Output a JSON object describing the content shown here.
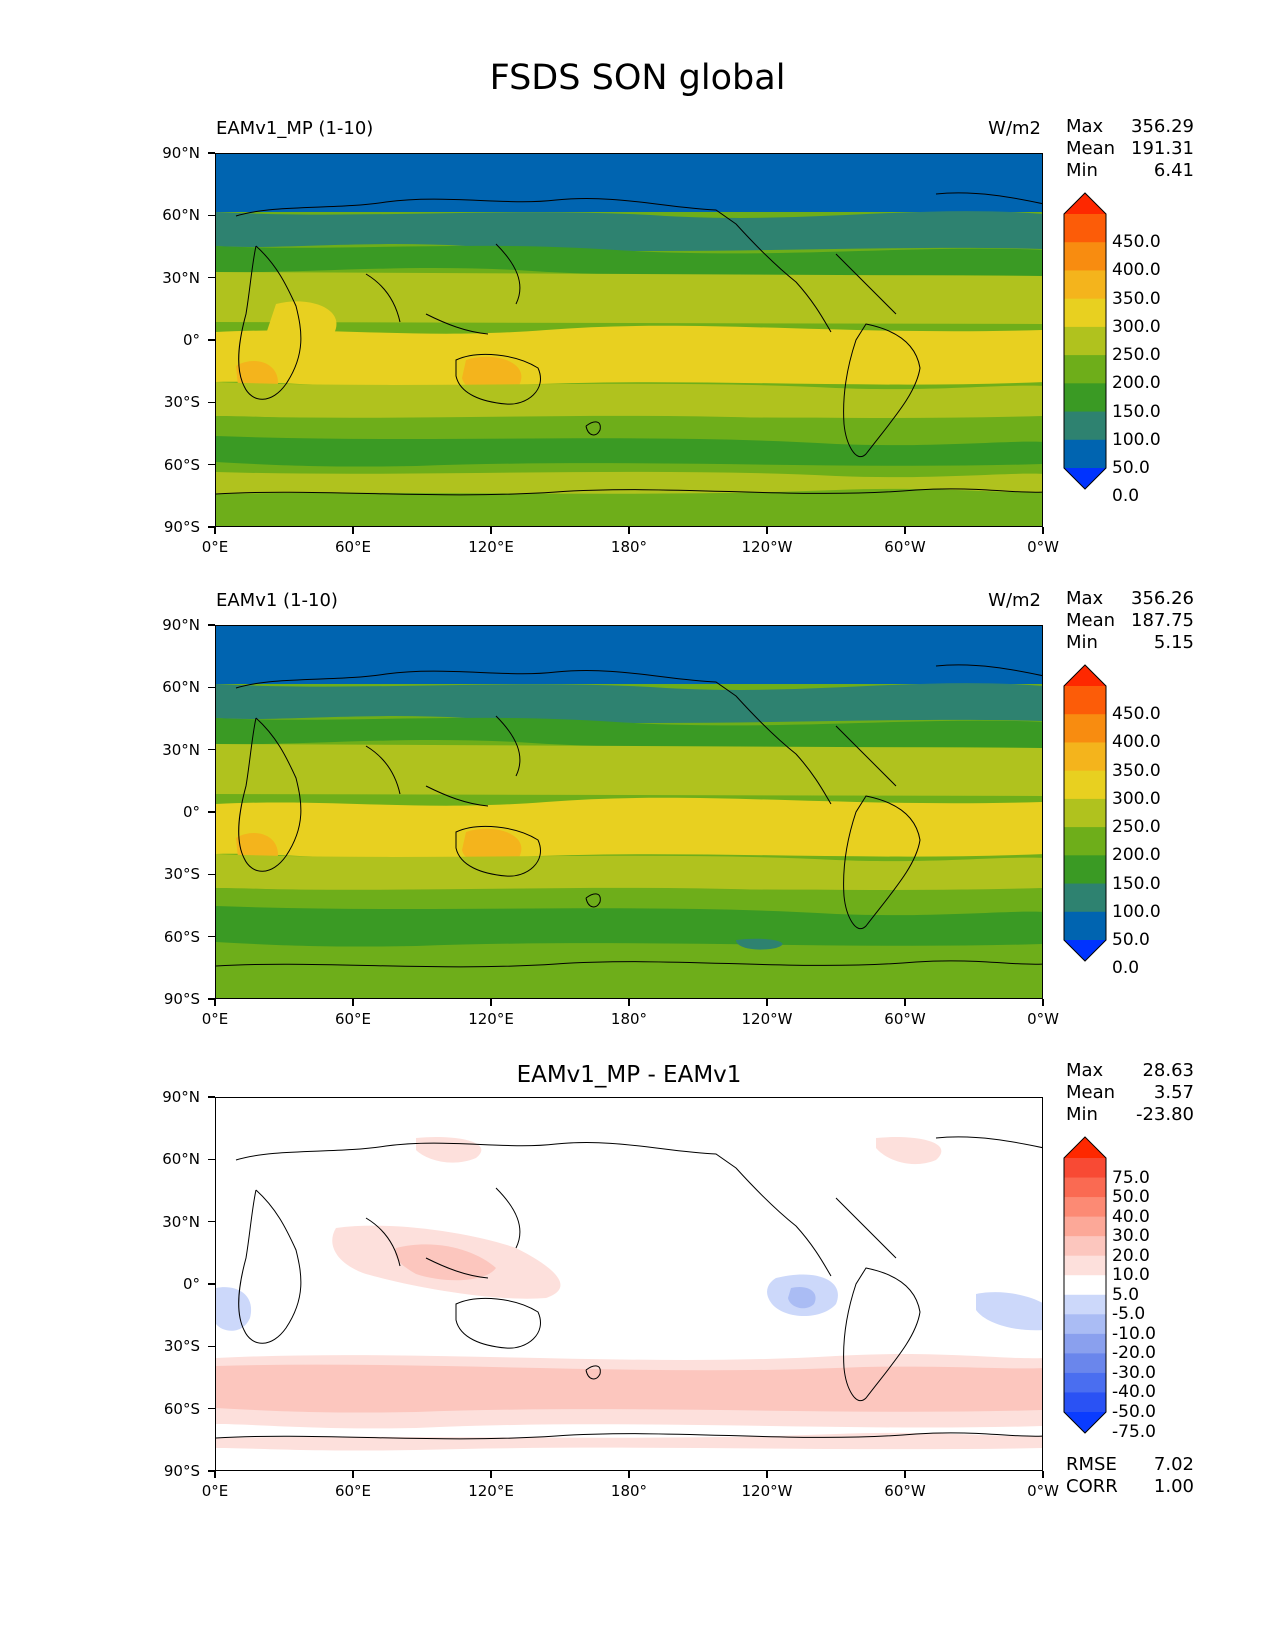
{
  "figure": {
    "title": "FSDS SON global"
  },
  "lat_ticks": [
    "90°N",
    "60°N",
    "30°N",
    "0°",
    "30°S",
    "60°S",
    "90°S"
  ],
  "lon_ticks": [
    "0°E",
    "60°E",
    "120°E",
    "180°",
    "120°W",
    "60°W",
    "0°W"
  ],
  "panels": [
    {
      "title_left": "EAMv1_MP (1-10)",
      "title_right": "W/m2",
      "stats": [
        {
          "label": "Max",
          "value": "356.29"
        },
        {
          "label": "Mean",
          "value": "191.31"
        },
        {
          "label": "Min",
          "value": "6.41"
        }
      ],
      "colorbar": {
        "labels": [
          "450.0",
          "400.0",
          "350.0",
          "300.0",
          "250.0",
          "200.0",
          "150.0",
          "100.0",
          "50.0",
          "0.0"
        ],
        "colors": [
          "#0033ff",
          "#0064b0",
          "#2e8270",
          "#3a9a24",
          "#6eae1a",
          "#b0c21e",
          "#e8d020",
          "#f4b41c",
          "#f88c10",
          "#fc5c08",
          "#fe2800"
        ]
      }
    },
    {
      "title_left": "EAMv1 (1-10)",
      "title_right": "W/m2",
      "stats": [
        {
          "label": "Max",
          "value": "356.26"
        },
        {
          "label": "Mean",
          "value": "187.75"
        },
        {
          "label": "Min",
          "value": "5.15"
        }
      ],
      "colorbar": {
        "labels": [
          "450.0",
          "400.0",
          "350.0",
          "300.0",
          "250.0",
          "200.0",
          "150.0",
          "100.0",
          "50.0",
          "0.0"
        ],
        "colors": [
          "#0033ff",
          "#0064b0",
          "#2e8270",
          "#3a9a24",
          "#6eae1a",
          "#b0c21e",
          "#e8d020",
          "#f4b41c",
          "#f88c10",
          "#fc5c08",
          "#fe2800"
        ]
      }
    },
    {
      "title_center": "EAMv1_MP - EAMv1",
      "stats": [
        {
          "label": "Max",
          "value": "28.63"
        },
        {
          "label": "Mean",
          "value": "3.57"
        },
        {
          "label": "Min",
          "value": "-23.80"
        }
      ],
      "extra_stats": [
        {
          "label": "RMSE",
          "value": "7.02"
        },
        {
          "label": "CORR",
          "value": "1.00"
        }
      ],
      "colorbar": {
        "labels": [
          "75.0",
          "50.0",
          "40.0",
          "30.0",
          "20.0",
          "10.0",
          "5.0",
          "-5.0",
          "-10.0",
          "-20.0",
          "-30.0",
          "-40.0",
          "-50.0",
          "-75.0"
        ],
        "colors": [
          "#0a3cff",
          "#2a52f4",
          "#4a6ef0",
          "#6a86ec",
          "#8aa0ee",
          "#aabcf4",
          "#ccd8fa",
          "#ffffff",
          "#fde0dc",
          "#fcc6be",
          "#fca898",
          "#fc8a74",
          "#fa6a52",
          "#f84a34",
          "#fe2800"
        ]
      }
    }
  ]
}
